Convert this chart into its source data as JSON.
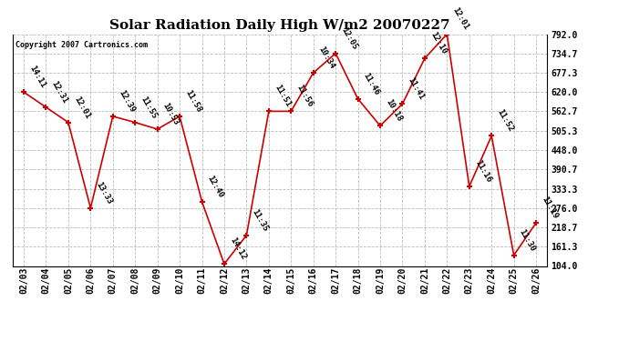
{
  "title": "Solar Radiation Daily High W/m2 20070227",
  "copyright": "Copyright 2007 Cartronics.com",
  "dates": [
    "02/03",
    "02/04",
    "02/05",
    "02/06",
    "02/07",
    "02/08",
    "02/09",
    "02/10",
    "02/11",
    "02/12",
    "02/13",
    "02/14",
    "02/15",
    "02/16",
    "02/17",
    "02/18",
    "02/19",
    "02/20",
    "02/21",
    "02/22",
    "02/23",
    "02/24",
    "02/25",
    "02/26"
  ],
  "values": [
    620,
    575,
    530,
    276,
    548,
    530,
    510,
    548,
    295,
    110,
    195,
    563,
    563,
    677,
    735,
    600,
    520,
    585,
    720,
    792,
    340,
    490,
    136,
    232
  ],
  "labels": [
    "14:11",
    "12:31",
    "12:01",
    "13:33",
    "12:39",
    "11:55",
    "10:53",
    "11:58",
    "12:40",
    "14:12",
    "11:35",
    "11:51",
    "11:56",
    "10:34",
    "12:05",
    "11:46",
    "10:18",
    "11:41",
    "12:10",
    "12:01",
    "11:16",
    "11:52",
    "11:30",
    "11:19"
  ],
  "ylim": [
    104,
    792
  ],
  "yticks": [
    104.0,
    161.3,
    218.7,
    276.0,
    333.3,
    390.7,
    448.0,
    505.3,
    562.7,
    620.0,
    677.3,
    734.7,
    792.0
  ],
  "line_color": "#cc0000",
  "bg_color": "#ffffff",
  "grid_color": "#bbbbbb",
  "title_fontsize": 11,
  "label_fontsize": 6.5,
  "xtick_fontsize": 7,
  "ytick_fontsize": 7
}
